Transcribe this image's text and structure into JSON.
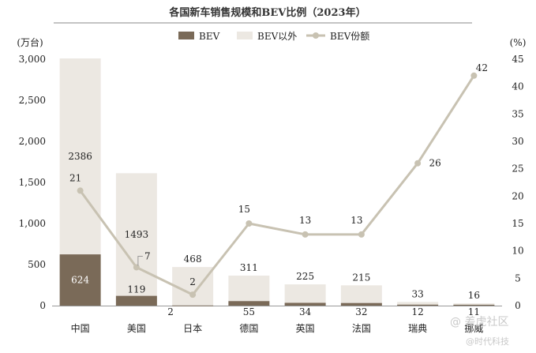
{
  "chart_data": {
    "type": "bar",
    "title": "各国新车销售规模和BEV比例（2023年）",
    "left_unit": "(万台)",
    "right_unit": "(%)",
    "categories": [
      "中国",
      "美国",
      "日本",
      "德国",
      "英国",
      "法国",
      "瑞典",
      "挪威"
    ],
    "series": [
      {
        "name": "BEV",
        "kind": "bar",
        "stack": "total",
        "color": "#7a6a58",
        "values": [
          624,
          119,
          2,
          55,
          34,
          32,
          12,
          11
        ]
      },
      {
        "name": "BEV以外",
        "kind": "bar",
        "stack": "total",
        "color": "#ece8e2",
        "values": [
          2386,
          1493,
          468,
          311,
          225,
          215,
          33,
          16
        ]
      },
      {
        "name": "BEV份额",
        "kind": "line",
        "axis": "right",
        "color": "#c8c2b2",
        "values": [
          21,
          7,
          2,
          15,
          13,
          13,
          26,
          42
        ]
      }
    ],
    "left_axis": {
      "min": 0,
      "max": 3000,
      "ticks": [
        "0",
        "500",
        "1,000",
        "1,500",
        "2,000",
        "2,500",
        "3,000"
      ]
    },
    "right_axis": {
      "min": 0,
      "max": 45,
      "ticks": [
        "0",
        "5",
        "10",
        "15",
        "20",
        "25",
        "30",
        "35",
        "40",
        "45"
      ]
    },
    "legend_position": "top",
    "grid": false
  },
  "watermark": {
    "line1": "@ 差虎社区",
    "line2": "@时代科技"
  }
}
